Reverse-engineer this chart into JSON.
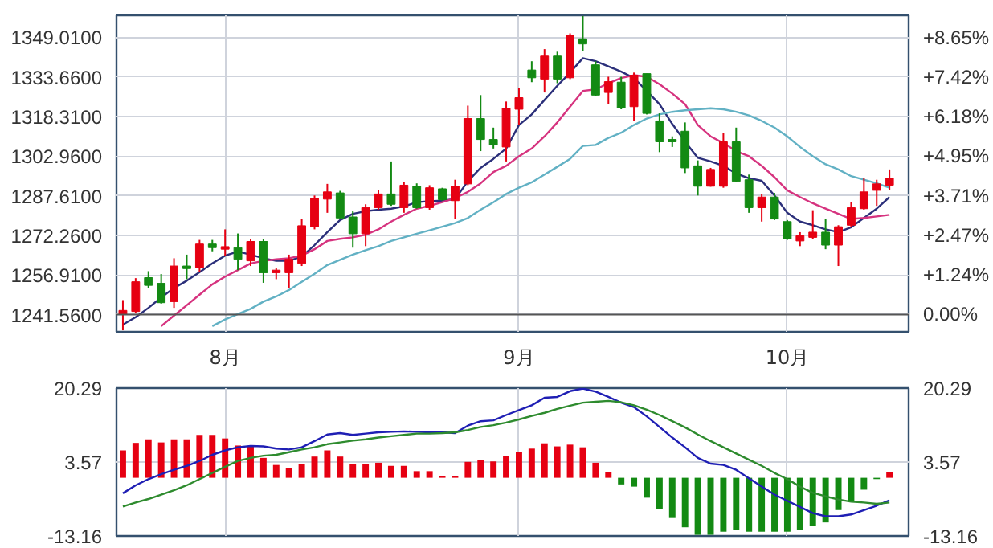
{
  "chart_data": [
    {
      "type": "candlestick",
      "categories": [
        null,
        null,
        null,
        null,
        null,
        null,
        null,
        null,
        "8月",
        null,
        null,
        null,
        null,
        null,
        null,
        null,
        null,
        null,
        null,
        null,
        null,
        null,
        null,
        null,
        null,
        null,
        null,
        null,
        null,
        null,
        null,
        "9月",
        null,
        null,
        null,
        null,
        null,
        null,
        null,
        null,
        null,
        null,
        null,
        null,
        null,
        null,
        null,
        null,
        null,
        null,
        null,
        null,
        "10月",
        null,
        null,
        null,
        null,
        null,
        null,
        null,
        null
      ],
      "ohlc": [
        [
          1241.6,
          1247.2,
          1235.5,
          1243.2
        ],
        [
          1242.8,
          1255.7,
          1242.2,
          1254.3
        ],
        [
          1255.9,
          1258.4,
          1251.9,
          1252.9
        ],
        [
          1253.7,
          1257.3,
          1245.8,
          1246.2
        ],
        [
          1246.6,
          1263.4,
          1244.2,
          1260.4
        ],
        [
          1260.4,
          1264.8,
          1255.3,
          1259.4
        ],
        [
          1259.8,
          1270.5,
          1258.0,
          1268.9
        ],
        [
          1268.9,
          1270.5,
          1266.1,
          1267.5
        ],
        [
          1266.9,
          1274.6,
          1264.4,
          1267.9
        ],
        [
          1267.5,
          1273.0,
          1258.8,
          1263.0
        ],
        [
          1262.4,
          1270.9,
          1260.4,
          1269.9
        ],
        [
          1269.9,
          1270.9,
          1253.9,
          1257.8
        ],
        [
          1257.8,
          1259.8,
          1255.3,
          1258.8
        ],
        [
          1257.8,
          1264.8,
          1251.7,
          1263.0
        ],
        [
          1261.4,
          1278.6,
          1260.4,
          1276.0
        ],
        [
          1275.6,
          1287.7,
          1274.6,
          1286.7
        ],
        [
          1286.3,
          1292.2,
          1281.0,
          1289.1
        ],
        [
          1288.7,
          1289.5,
          1278.6,
          1279.0
        ],
        [
          1279.4,
          1281.6,
          1267.5,
          1272.9
        ],
        [
          1272.9,
          1284.3,
          1268.1,
          1283.0
        ],
        [
          1283.0,
          1289.7,
          1282.2,
          1288.3
        ],
        [
          1288.3,
          1300.9,
          1283.7,
          1284.3
        ],
        [
          1283.0,
          1292.8,
          1281.0,
          1291.7
        ],
        [
          1291.3,
          1292.4,
          1282.6,
          1283.0
        ],
        [
          1283.0,
          1291.7,
          1282.2,
          1290.7
        ],
        [
          1290.3,
          1290.7,
          1285.7,
          1286.1
        ],
        [
          1285.7,
          1293.8,
          1278.6,
          1291.3
        ],
        [
          1292.2,
          1322.5,
          1291.7,
          1317.5
        ],
        [
          1317.5,
          1326.6,
          1304.9,
          1309.4
        ],
        [
          1309.4,
          1314.0,
          1305.9,
          1307.3
        ],
        [
          1306.5,
          1324.1,
          1300.9,
          1321.5
        ],
        [
          1321.1,
          1329.2,
          1315.0,
          1325.6
        ],
        [
          1336.3,
          1339.7,
          1331.6,
          1333.3
        ],
        [
          1332.8,
          1344.4,
          1327.6,
          1341.7
        ],
        [
          1341.7,
          1343.4,
          1331.2,
          1332.8
        ],
        [
          1333.3,
          1350.5,
          1332.8,
          1349.8
        ],
        [
          1348.4,
          1357.2,
          1343.8,
          1346.4
        ],
        [
          1338.3,
          1339.7,
          1326.2,
          1326.6
        ],
        [
          1327.6,
          1333.7,
          1323.1,
          1331.8
        ],
        [
          1331.6,
          1333.7,
          1321.1,
          1321.7
        ],
        [
          1322.1,
          1335.3,
          1316.7,
          1334.3
        ],
        [
          1334.9,
          1334.9,
          1319.1,
          1319.5
        ],
        [
          1316.6,
          1319.5,
          1304.5,
          1308.5
        ],
        [
          1309.4,
          1310.6,
          1306.5,
          1308.5
        ],
        [
          1312.6,
          1316.0,
          1296.4,
          1298.4
        ],
        [
          1299.2,
          1301.3,
          1287.7,
          1291.3
        ],
        [
          1291.3,
          1298.4,
          1291.1,
          1297.8
        ],
        [
          1291.3,
          1312.0,
          1290.7,
          1308.5
        ],
        [
          1308.5,
          1314.0,
          1292.8,
          1293.2
        ],
        [
          1293.8,
          1295.8,
          1281.0,
          1283.0
        ],
        [
          1283.0,
          1288.3,
          1277.6,
          1287.1
        ],
        [
          1287.1,
          1288.7,
          1278.2,
          1278.6
        ],
        [
          1277.6,
          1278.2,
          1270.5,
          1270.9
        ],
        [
          1270.1,
          1273.5,
          1268.1,
          1272.1
        ],
        [
          1271.5,
          1282.0,
          1270.9,
          1273.5
        ],
        [
          1273.5,
          1278.6,
          1266.9,
          1268.5
        ],
        [
          1268.5,
          1276.2,
          1260.4,
          1275.6
        ],
        [
          1276.2,
          1285.1,
          1275.6,
          1283.0
        ],
        [
          1282.6,
          1294.4,
          1282.2,
          1289.1
        ],
        [
          1289.7,
          1293.8,
          1283.7,
          1292.2
        ],
        [
          1291.7,
          1297.8,
          1289.7,
          1294.4
        ]
      ],
      "colors": [
        "#e60012",
        "#e60012",
        "#138a13",
        "#138a13",
        "#e60012",
        "#138a13",
        "#e60012",
        "#138a13",
        "#e60012",
        "#138a13",
        "#e60012",
        "#138a13",
        "#e60012",
        "#e60012",
        "#e60012",
        "#e60012",
        "#e60012",
        "#138a13",
        "#138a13",
        "#e60012",
        "#e60012",
        "#138a13",
        "#e60012",
        "#138a13",
        "#e60012",
        "#138a13",
        "#e60012",
        "#e60012",
        "#138a13",
        "#138a13",
        "#e60012",
        "#e60012",
        "#138a13",
        "#e60012",
        "#138a13",
        "#e60012",
        "#138a13",
        "#138a13",
        "#e60012",
        "#138a13",
        "#e60012",
        "#138a13",
        "#138a13",
        "#138a13",
        "#138a13",
        "#138a13",
        "#e60012",
        "#e60012",
        "#138a13",
        "#138a13",
        "#e60012",
        "#138a13",
        "#138a13",
        "#e60012",
        "#e60012",
        "#138a13",
        "#e60012",
        "#e60012",
        "#e60012",
        "#e60012",
        "#e60012"
      ],
      "series": [
        {
          "type": "line",
          "color": "#2b2f7a",
          "values": [
            1237.7,
            1240.6,
            1244.2,
            1248.2,
            1251.9,
            1254.7,
            1258.0,
            1261.4,
            1264.4,
            1266.0,
            1264.8,
            1263.4,
            1262.4,
            1262.4,
            1264.0,
            1268.5,
            1273.5,
            1278.2,
            1280.6,
            1281.6,
            1282.2,
            1282.6,
            1283.5,
            1285.1,
            1285.5,
            1285.7,
            1286.3,
            1293.2,
            1298.4,
            1301.9,
            1305.9,
            1315.0,
            1319.1,
            1324.7,
            1330.2,
            1335.3,
            1340.9,
            1339.7,
            1337.7,
            1335.7,
            1333.2,
            1328.2,
            1323.1,
            1315.4,
            1308.6,
            1302.3,
            1300.9,
            1299.2,
            1296.2,
            1294.4,
            1293.4,
            1287.7,
            1281.0,
            1277.6,
            1276.2,
            1274.6,
            1273.5,
            1275.4,
            1279.0,
            1282.6,
            1287.1
          ]
        },
        {
          "type": "line",
          "color": "#d6337f",
          "values": [
            null,
            null,
            null,
            1237.1,
            1241.2,
            1245.2,
            1249.3,
            1253.3,
            1256.3,
            1258.8,
            1261.4,
            1262.4,
            1263.0,
            1263.4,
            1264.4,
            1266.9,
            1270.1,
            1270.9,
            1271.5,
            1272.5,
            1274.6,
            1277.6,
            1280.2,
            1282.6,
            1283.7,
            1285.1,
            1286.7,
            1289.1,
            1292.4,
            1296.8,
            1299.2,
            1302.9,
            1305.9,
            1310.6,
            1316.0,
            1322.1,
            1328.2,
            1328.8,
            1331.2,
            1333.2,
            1334.3,
            1333.7,
            1330.8,
            1327.2,
            1323.1,
            1315.0,
            1310.6,
            1308.0,
            1304.9,
            1302.9,
            1299.2,
            1294.8,
            1289.7,
            1287.1,
            1284.7,
            1282.6,
            1280.6,
            1278.6,
            1279.0,
            1279.6,
            1280.2
          ]
        },
        {
          "type": "line",
          "color": "#62b1c4",
          "values": [
            null,
            null,
            null,
            null,
            null,
            null,
            null,
            1237.1,
            1239.7,
            1241.8,
            1243.8,
            1246.6,
            1248.6,
            1251.1,
            1254.3,
            1257.4,
            1260.8,
            1262.8,
            1264.8,
            1266.5,
            1268.1,
            1270.1,
            1271.5,
            1272.9,
            1274.2,
            1275.6,
            1277.0,
            1279.0,
            1282.2,
            1285.1,
            1288.3,
            1290.7,
            1292.8,
            1295.8,
            1298.8,
            1301.9,
            1306.9,
            1307.3,
            1310.0,
            1312.0,
            1315.0,
            1317.5,
            1319.1,
            1320.1,
            1320.7,
            1321.1,
            1321.5,
            1321.1,
            1320.1,
            1318.7,
            1316.6,
            1314.0,
            1310.6,
            1306.5,
            1302.9,
            1299.8,
            1297.8,
            1295.2,
            1293.8,
            1292.4,
            1290.7
          ]
        }
      ],
      "ylim": [
        1234.9,
        1357.5
      ],
      "yticks": [
        {
          "value": 1241.56,
          "label": "1241.5600"
        },
        {
          "value": 1256.91,
          "label": "1256.9100"
        },
        {
          "value": 1272.26,
          "label": "1272.2600"
        },
        {
          "value": 1287.61,
          "label": "1287.6100"
        },
        {
          "value": 1302.96,
          "label": "1302.9600"
        },
        {
          "value": 1318.31,
          "label": "1318.3100"
        },
        {
          "value": 1333.66,
          "label": "1333.6600"
        },
        {
          "value": 1349.01,
          "label": "1349.0100"
        }
      ],
      "y2lim": [
        -0.54,
        9.34
      ],
      "y2ticks": [
        {
          "value": 0,
          "label": "0.00%"
        },
        {
          "value": 1.24,
          "label": "+1.24%"
        },
        {
          "value": 2.47,
          "label": "+2.47%"
        },
        {
          "value": 3.71,
          "label": "+3.71%"
        },
        {
          "value": 4.95,
          "label": "+4.95%"
        },
        {
          "value": 6.18,
          "label": "+6.18%"
        },
        {
          "value": 7.42,
          "label": "+7.42%"
        },
        {
          "value": 8.65,
          "label": "+8.65%"
        }
      ],
      "ref_lines": [
        {
          "axis": "y",
          "value": 1241.56,
          "color": "#555555"
        }
      ],
      "grid": true
    },
    {
      "type": "bar",
      "categories": [
        null,
        null,
        null,
        null,
        null,
        null,
        null,
        null,
        null,
        null,
        null,
        null,
        null,
        null,
        null,
        null,
        null,
        null,
        null,
        null,
        null,
        null,
        null,
        null,
        null,
        null,
        null,
        null,
        null,
        null,
        null,
        null,
        null,
        null,
        null,
        null,
        null,
        null,
        null,
        null,
        null,
        null,
        null,
        null,
        null,
        null,
        null,
        null,
        null,
        null,
        null,
        null,
        null,
        null,
        null,
        null,
        null,
        null,
        null,
        null,
        null
      ],
      "series": [
        {
          "type": "bar",
          "values": [
            6.2,
            7.9,
            8.7,
            8.0,
            8.7,
            8.7,
            9.7,
            9.7,
            8.9,
            7.3,
            7.1,
            4.5,
            2.9,
            2.2,
            3.2,
            4.8,
            6.2,
            4.8,
            3.2,
            3.2,
            3.4,
            2.7,
            2.7,
            1.5,
            1.5,
            0.4,
            0.4,
            3.6,
            4.1,
            3.7,
            5.0,
            5.8,
            6.6,
            7.8,
            7.1,
            7.5,
            6.9,
            3.4,
            1.3,
            -1.5,
            -2.0,
            -4.5,
            -7.0,
            -9.1,
            -11.2,
            -12.9,
            -12.9,
            -12.2,
            -11.8,
            -12.2,
            -12.2,
            -12.2,
            -12.2,
            -11.8,
            -10.8,
            -10.1,
            -7.3,
            -5.2,
            -2.7,
            -0.3,
            1.3
          ],
          "colors": [
            "#e60012",
            "#e60012",
            "#e60012",
            "#e60012",
            "#e60012",
            "#e60012",
            "#e60012",
            "#e60012",
            "#e60012",
            "#e60012",
            "#e60012",
            "#e60012",
            "#e60012",
            "#e60012",
            "#e60012",
            "#e60012",
            "#e60012",
            "#e60012",
            "#e60012",
            "#e60012",
            "#e60012",
            "#e60012",
            "#e60012",
            "#e60012",
            "#e60012",
            "#e60012",
            "#e60012",
            "#e60012",
            "#e60012",
            "#e60012",
            "#e60012",
            "#e60012",
            "#e60012",
            "#e60012",
            "#e60012",
            "#e60012",
            "#e60012",
            "#e60012",
            "#e60012",
            "#138a13",
            "#138a13",
            "#138a13",
            "#138a13",
            "#138a13",
            "#138a13",
            "#138a13",
            "#138a13",
            "#138a13",
            "#138a13",
            "#138a13",
            "#138a13",
            "#138a13",
            "#138a13",
            "#138a13",
            "#138a13",
            "#138a13",
            "#138a13",
            "#138a13",
            "#138a13",
            "#138a13",
            "#e60012"
          ]
        },
        {
          "type": "line",
          "color": "#1f1fb4",
          "values": [
            -3.5,
            -1.7,
            -0.3,
            0.8,
            1.8,
            2.7,
            3.8,
            5.2,
            6.2,
            6.9,
            7.2,
            7.1,
            6.6,
            6.4,
            6.9,
            8.3,
            9.8,
            10.1,
            9.7,
            10.0,
            10.3,
            10.4,
            10.5,
            10.4,
            10.3,
            10.3,
            10.1,
            11.8,
            12.8,
            13.0,
            14.2,
            15.3,
            16.4,
            18.1,
            18.3,
            19.6,
            20.2,
            19.5,
            18.3,
            17.0,
            16.0,
            13.9,
            11.5,
            9.1,
            6.9,
            4.5,
            3.2,
            2.9,
            1.8,
            -0.1,
            -2.0,
            -3.8,
            -5.2,
            -6.6,
            -8.0,
            -8.7,
            -8.7,
            -8.3,
            -7.3,
            -6.3,
            -5.1
          ]
        },
        {
          "type": "line",
          "color": "#2e8b2e",
          "values": [
            -6.5,
            -5.6,
            -4.8,
            -3.8,
            -2.8,
            -1.7,
            -0.3,
            1.1,
            2.5,
            3.8,
            4.5,
            5.0,
            5.2,
            5.8,
            6.4,
            6.9,
            7.6,
            8.0,
            8.4,
            8.7,
            9.1,
            9.4,
            9.7,
            10.0,
            10.0,
            10.1,
            10.3,
            10.8,
            11.5,
            11.9,
            12.5,
            13.2,
            14.0,
            14.7,
            15.6,
            16.3,
            17.0,
            17.2,
            17.4,
            17.1,
            16.4,
            15.4,
            14.2,
            12.8,
            11.4,
            9.8,
            8.3,
            6.9,
            5.5,
            4.1,
            2.7,
            1.1,
            -0.3,
            -2.0,
            -3.4,
            -4.2,
            -4.9,
            -5.4,
            -5.6,
            -5.9,
            -5.6
          ]
        }
      ],
      "ylim": [
        -13.16,
        20.29
      ],
      "yticks": [
        -13.16,
        3.57,
        20.29
      ],
      "y2lim": [
        -13.16,
        20.29
      ],
      "y2ticks": [
        -13.16,
        3.57,
        20.29
      ],
      "tick_labels": "y",
      "grid": true
    }
  ]
}
